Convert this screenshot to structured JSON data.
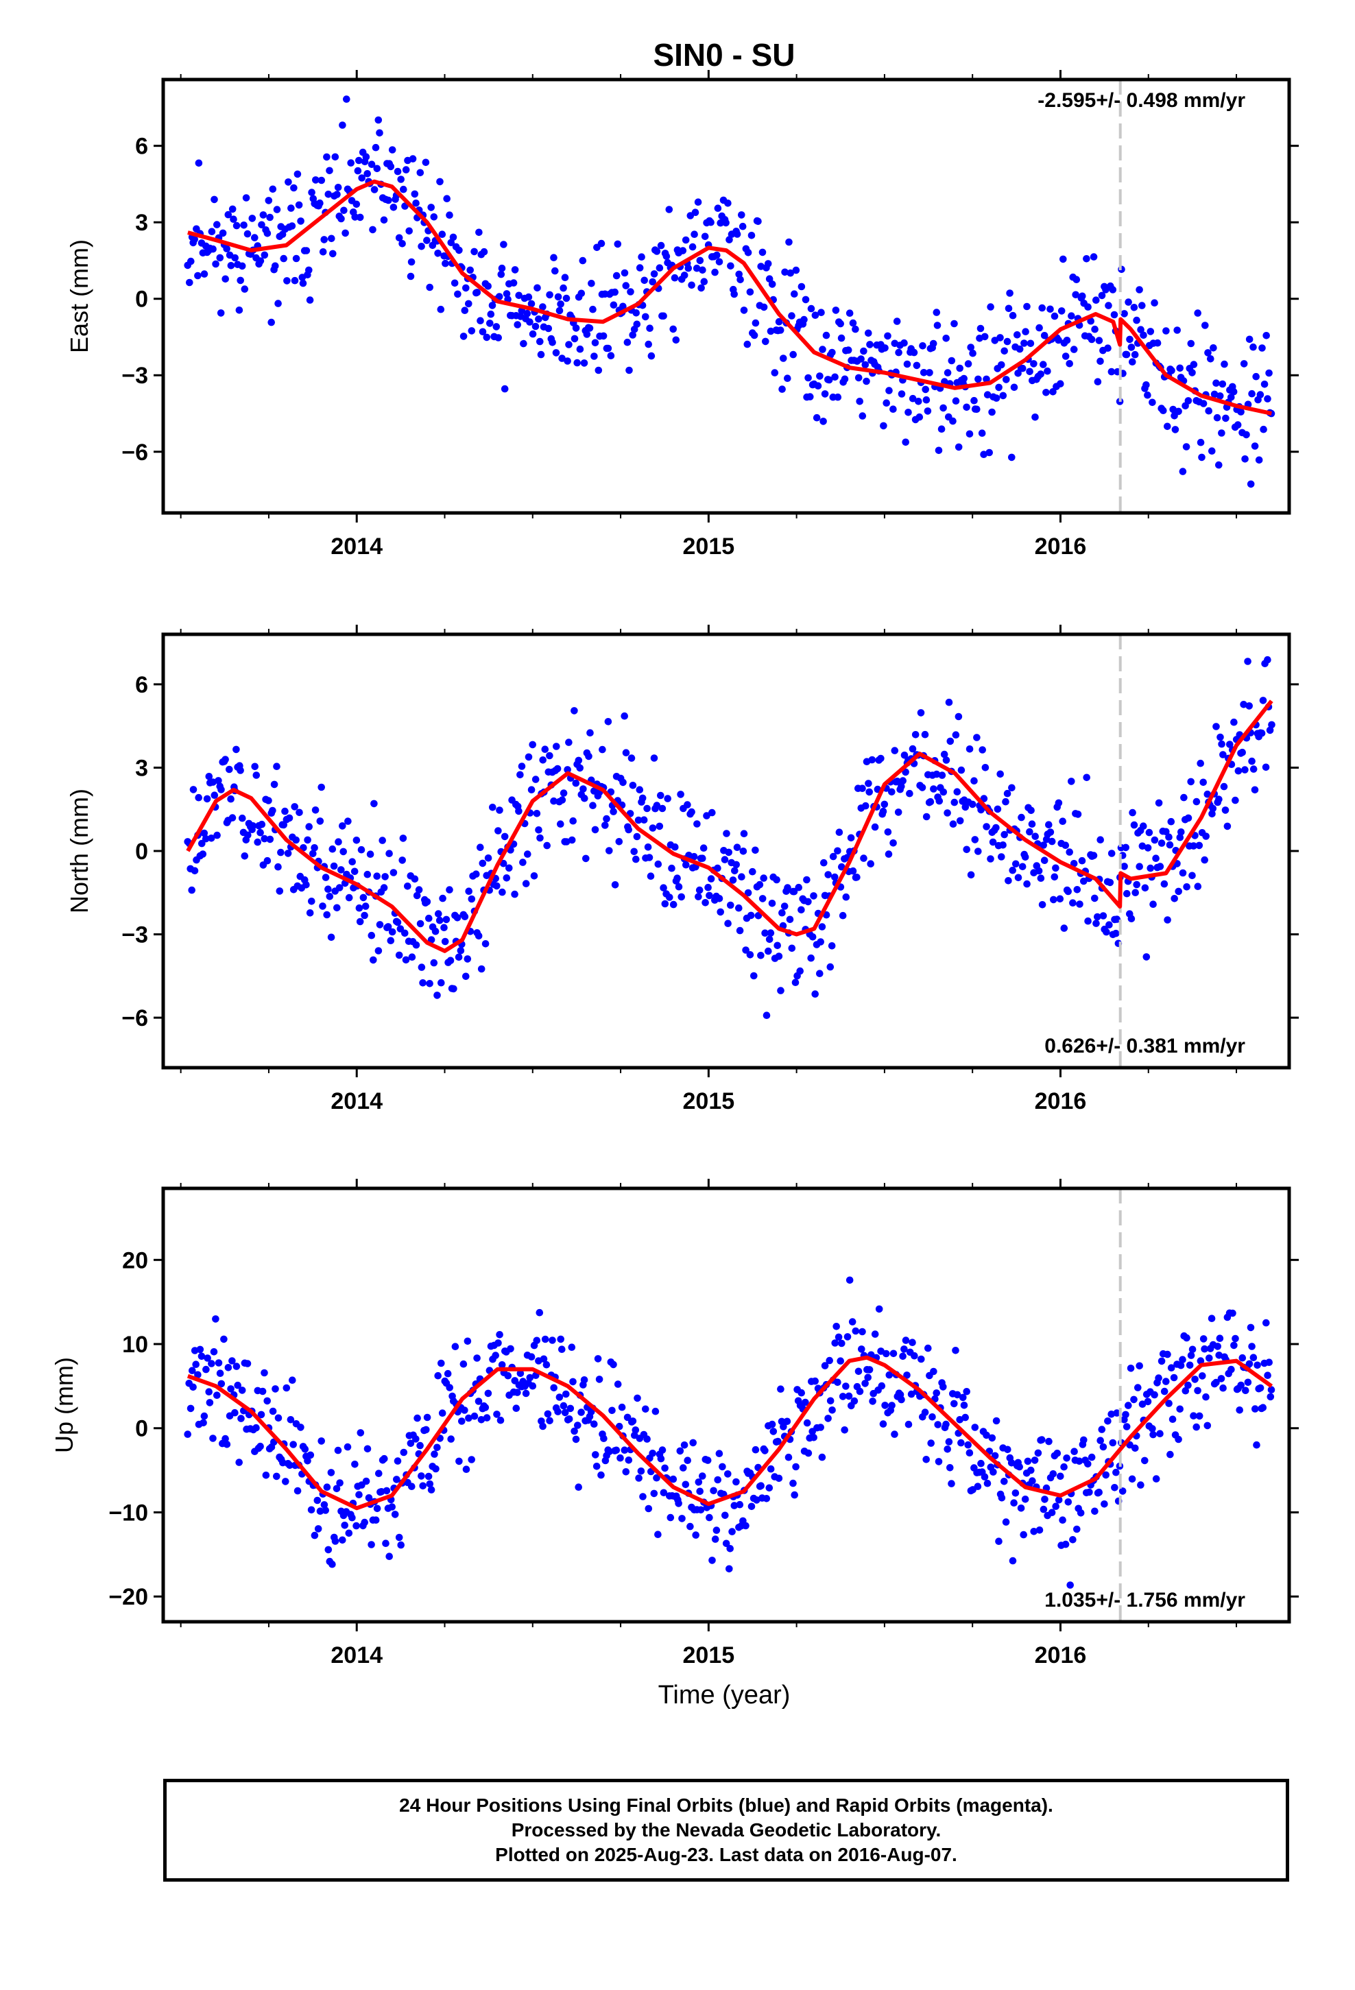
{
  "title": "SIN0 - SU",
  "xlabel": "Time (year)",
  "footer": [
    "24 Hour Positions Using Final Orbits (blue) and Rapid Orbits (magenta).",
    "Processed by the Nevada Geodetic Laboratory.",
    "Plotted on 2025-Aug-23. Last data on 2016-Aug-07."
  ],
  "colors": {
    "points": "#0000ff",
    "fit": "#ff0000",
    "step": "#c8c8c8",
    "frame": "#000000"
  },
  "chart_data": [
    {
      "type": "scatter",
      "component": "East",
      "ylabel": "East (mm)",
      "rate": "-2.595+/- 0.498 mm/yr",
      "rate_position": "top-right",
      "xlim": [
        2013.45,
        2016.65
      ],
      "ylim": [
        -8.4,
        8.6
      ],
      "xticks": [
        2014,
        2015,
        2016
      ],
      "xtick_labels": [
        "2014",
        "2015",
        "2016"
      ],
      "yticks": [
        -6,
        -3,
        0,
        3,
        6
      ],
      "ytick_labels": [
        "−6",
        "−3",
        "0",
        "3",
        "6"
      ],
      "step_epoch": 2016.17,
      "fit": {
        "x": [
          2013.52,
          2013.6,
          2013.7,
          2013.8,
          2013.9,
          2014.0,
          2014.05,
          2014.1,
          2014.2,
          2014.3,
          2014.4,
          2014.5,
          2014.6,
          2014.7,
          2014.8,
          2014.9,
          2015.0,
          2015.05,
          2015.1,
          2015.2,
          2015.3,
          2015.4,
          2015.5,
          2015.6,
          2015.7,
          2015.8,
          2015.9,
          2016.0,
          2016.1,
          2016.15,
          2016.169,
          2016.171,
          2016.2,
          2016.3,
          2016.4,
          2016.5,
          2016.6
        ],
        "y": [
          2.6,
          2.3,
          1.9,
          2.1,
          3.2,
          4.3,
          4.6,
          4.4,
          3.0,
          1.0,
          -0.1,
          -0.4,
          -0.8,
          -0.9,
          -0.2,
          1.2,
          2.0,
          1.9,
          1.4,
          -0.6,
          -2.1,
          -2.7,
          -2.9,
          -3.2,
          -3.5,
          -3.3,
          -2.4,
          -1.2,
          -0.6,
          -0.9,
          -1.8,
          -0.8,
          -1.2,
          -3.0,
          -3.8,
          -4.2,
          -4.5
        ]
      },
      "scatter_model": {
        "n": 780,
        "sigma": 1.3,
        "seed": 11
      }
    },
    {
      "type": "scatter",
      "component": "North",
      "ylabel": "North (mm)",
      "rate": "0.626+/- 0.381 mm/yr",
      "rate_position": "bottom-right",
      "xlim": [
        2013.45,
        2016.65
      ],
      "ylim": [
        -7.8,
        7.8
      ],
      "xticks": [
        2014,
        2015,
        2016
      ],
      "xtick_labels": [
        "2014",
        "2015",
        "2016"
      ],
      "yticks": [
        -6,
        -3,
        0,
        3,
        6
      ],
      "ytick_labels": [
        "−6",
        "−3",
        "0",
        "3",
        "6"
      ],
      "step_epoch": 2016.17,
      "fit": {
        "x": [
          2013.52,
          2013.6,
          2013.65,
          2013.7,
          2013.8,
          2013.9,
          2014.0,
          2014.1,
          2014.2,
          2014.25,
          2014.3,
          2014.4,
          2014.5,
          2014.6,
          2014.7,
          2014.8,
          2014.9,
          2015.0,
          2015.1,
          2015.2,
          2015.25,
          2015.3,
          2015.4,
          2015.5,
          2015.6,
          2015.7,
          2015.8,
          2015.9,
          2016.0,
          2016.1,
          2016.169,
          2016.171,
          2016.2,
          2016.3,
          2016.4,
          2016.5,
          2016.6
        ],
        "y": [
          0.0,
          1.8,
          2.2,
          1.9,
          0.4,
          -0.6,
          -1.2,
          -2.0,
          -3.3,
          -3.6,
          -3.2,
          -0.5,
          1.8,
          2.8,
          2.2,
          0.8,
          -0.1,
          -0.6,
          -1.6,
          -2.8,
          -3.0,
          -2.8,
          -0.4,
          2.4,
          3.5,
          2.8,
          1.4,
          0.4,
          -0.4,
          -1.0,
          -2.0,
          -0.8,
          -1.0,
          -0.8,
          1.2,
          3.8,
          5.4
        ]
      },
      "scatter_model": {
        "n": 780,
        "sigma": 1.2,
        "seed": 23
      }
    },
    {
      "type": "scatter",
      "component": "Up",
      "ylabel": "Up (mm)",
      "rate": "1.035+/- 1.756 mm/yr",
      "rate_position": "bottom-right",
      "xlim": [
        2013.45,
        2016.65
      ],
      "ylim": [
        -23,
        28.5
      ],
      "xticks": [
        2014,
        2015,
        2016
      ],
      "xtick_labels": [
        "2014",
        "2015",
        "2016"
      ],
      "yticks": [
        -20,
        -10,
        0,
        10,
        20
      ],
      "ytick_labels": [
        "−20",
        "−10",
        "0",
        "10",
        "20"
      ],
      "step_epoch": 2016.17,
      "fit": {
        "x": [
          2013.52,
          2013.6,
          2013.7,
          2013.8,
          2013.9,
          2014.0,
          2014.1,
          2014.2,
          2014.3,
          2014.4,
          2014.5,
          2014.6,
          2014.7,
          2014.8,
          2014.9,
          2015.0,
          2015.1,
          2015.2,
          2015.3,
          2015.4,
          2015.45,
          2015.5,
          2015.6,
          2015.7,
          2015.8,
          2015.9,
          2016.0,
          2016.1,
          2016.17,
          2016.2,
          2016.3,
          2016.4,
          2016.5,
          2016.6
        ],
        "y": [
          6.2,
          5.0,
          2.0,
          -2.5,
          -7.5,
          -9.5,
          -8.0,
          -2.5,
          3.5,
          7.0,
          7.0,
          5.0,
          1.5,
          -3.0,
          -7.0,
          -9.0,
          -7.5,
          -2.5,
          3.5,
          8.0,
          8.4,
          7.5,
          4.5,
          0.5,
          -3.5,
          -7.0,
          -8.0,
          -6.0,
          -2.5,
          -1.0,
          3.5,
          7.5,
          8.0,
          5.0
        ]
      },
      "scatter_model": {
        "n": 780,
        "sigma": 3.6,
        "seed": 37
      }
    }
  ]
}
